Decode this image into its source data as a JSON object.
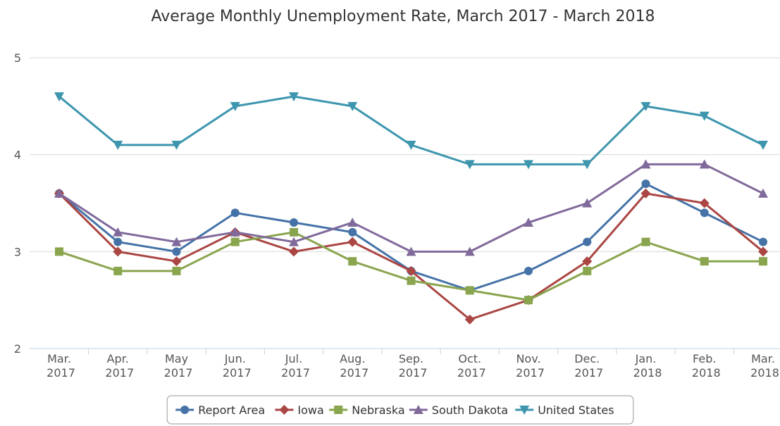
{
  "chart_data": {
    "type": "line",
    "title": "Average Monthly Unemployment Rate, March 2017 - March 2018",
    "categories": [
      "Mar. 2017",
      "Apr. 2017",
      "May 2017",
      "Jun. 2017",
      "Jul. 2017",
      "Aug. 2017",
      "Sep. 2017",
      "Oct. 2017",
      "Nov. 2017",
      "Dec. 2017",
      "Jan. 2018",
      "Feb. 2018",
      "Mar. 2018"
    ],
    "series": [
      {
        "name": "Report Area",
        "color": "#4572a7",
        "marker": "circle",
        "values": [
          3.6,
          3.1,
          3.0,
          3.4,
          3.3,
          3.2,
          2.8,
          2.6,
          2.8,
          3.1,
          3.7,
          3.4,
          3.1
        ]
      },
      {
        "name": "Iowa",
        "color": "#aa4643",
        "marker": "diamond",
        "values": [
          3.6,
          3.0,
          2.9,
          3.2,
          3.0,
          3.1,
          2.8,
          2.3,
          2.5,
          2.9,
          3.6,
          3.5,
          3.0
        ]
      },
      {
        "name": "Nebraska",
        "color": "#89a54e",
        "marker": "square",
        "values": [
          3.0,
          2.8,
          2.8,
          3.1,
          3.2,
          2.9,
          2.7,
          2.6,
          2.5,
          2.8,
          3.1,
          2.9,
          2.9
        ]
      },
      {
        "name": "South Dakota",
        "color": "#80699b",
        "marker": "triangle",
        "values": [
          3.6,
          3.2,
          3.1,
          3.2,
          3.1,
          3.3,
          3.0,
          3.0,
          3.3,
          3.5,
          3.9,
          3.9,
          3.6
        ]
      },
      {
        "name": "United States",
        "color": "#3d96ae",
        "marker": "triangle-down",
        "values": [
          4.6,
          4.1,
          4.1,
          4.5,
          4.6,
          4.5,
          4.1,
          3.9,
          3.9,
          3.9,
          4.5,
          4.4,
          4.1
        ]
      }
    ],
    "ylim": [
      2,
      5
    ],
    "yticks": [
      2,
      3,
      4,
      5
    ],
    "grid": true,
    "legend": "bottom"
  }
}
